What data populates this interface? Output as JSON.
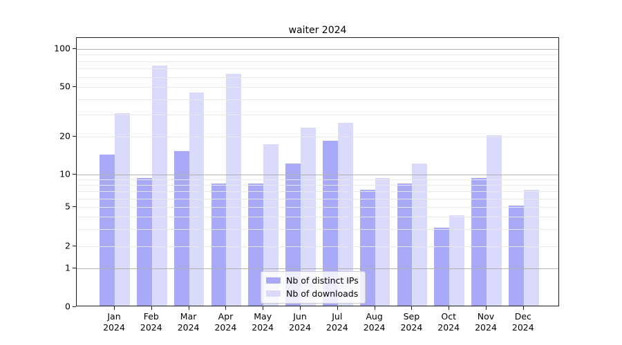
{
  "title": "waiter 2024",
  "colors": {
    "distinct_ips": "#a9a9fa",
    "downloads": "#dadafa",
    "grid_major": "#b0b0b0",
    "grid_minor": "#e7e7e7",
    "axis": "#1a1a1a"
  },
  "chart_data": {
    "type": "bar",
    "title": "waiter 2024",
    "categories": [
      "Jan 2024",
      "Feb 2024",
      "Mar 2024",
      "Apr 2024",
      "May 2024",
      "Jun 2024",
      "Jul 2024",
      "Aug 2024",
      "Sep 2024",
      "Oct 2024",
      "Nov 2024",
      "Dec 2024"
    ],
    "series": [
      {
        "name": "Nb of distinct IPs",
        "color": "#a9a9fa",
        "values": [
          14,
          9,
          15,
          8,
          8,
          12,
          18,
          7,
          8,
          3,
          9,
          5
        ]
      },
      {
        "name": "Nb of downloads",
        "color": "#dadafa",
        "values": [
          30,
          72,
          44,
          62,
          17,
          23,
          25,
          9,
          12,
          4,
          20,
          7
        ]
      }
    ],
    "xlabel": "",
    "ylabel": "",
    "yscale": "symlog",
    "ylim": [
      0,
      110
    ],
    "y_tick_values": [
      0,
      1,
      2,
      5,
      10,
      20,
      50,
      100
    ],
    "y_tick_labels": [
      "0",
      "1",
      "2",
      "5",
      "10",
      "20",
      "50",
      "100"
    ],
    "y_major_grid_values": [
      1,
      10,
      100
    ],
    "y_minor_grid_values": [
      2,
      3,
      4,
      5,
      6,
      7,
      8,
      9,
      20,
      30,
      40,
      50,
      60,
      70,
      80,
      90
    ],
    "grid": true,
    "legend_position": "lower center"
  },
  "legend": {
    "items": [
      {
        "label": "Nb of distinct IPs",
        "color": "#a9a9fa"
      },
      {
        "label": "Nb of downloads",
        "color": "#dadafa"
      }
    ]
  }
}
